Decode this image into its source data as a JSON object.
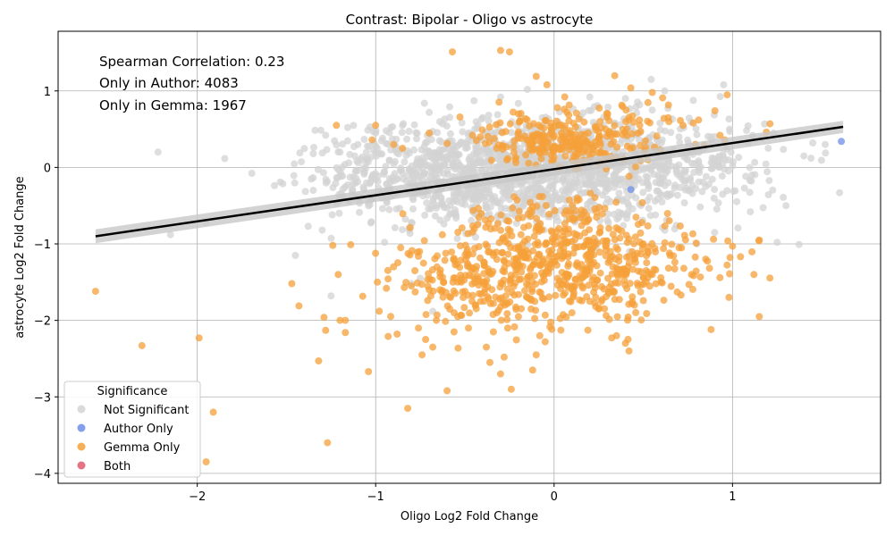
{
  "chart_data": {
    "type": "scatter",
    "title": "Contrast: Bipolar - Oligo vs astrocyte",
    "xlabel": "Oligo Log2 Fold Change",
    "ylabel": "astrocyte Log2 Fold Change",
    "xlim": [
      -2.78,
      1.83
    ],
    "ylim": [
      -4.13,
      1.78
    ],
    "x_ticks": [
      -2,
      -1,
      0,
      1
    ],
    "x_tick_labels": [
      "−2",
      "−1",
      "0",
      "1"
    ],
    "y_ticks": [
      -4,
      -3,
      -2,
      -1,
      0,
      1
    ],
    "y_tick_labels": [
      "−4",
      "−3",
      "−2",
      "−1",
      "0",
      "1"
    ],
    "grid": true,
    "annotations": [
      "Spearman Correlation: 0.23",
      "Only in Author: 4083",
      "Only in Gemma: 1967"
    ],
    "regression_line": {
      "color": "#000000",
      "band_color": "#c8c8c8",
      "start": [
        -2.57,
        -0.9
      ],
      "end": [
        1.62,
        0.53
      ],
      "ci_halfwidth": [
        0.09,
        0.08
      ]
    },
    "legend": {
      "title": "Significance",
      "placement": "lower-left",
      "entries": [
        {
          "label": "Not Significant",
          "color": "#d3d3d3"
        },
        {
          "label": "Author Only",
          "color": "#6f8ee8"
        },
        {
          "label": "Gemma Only",
          "color": "#f5a03a"
        },
        {
          "label": "Both",
          "color": "#e05a6f"
        }
      ]
    },
    "series": [
      {
        "name": "Not Significant",
        "color": "#d3d3d3",
        "points": [
          [
            -2.22,
            0.2
          ],
          [
            -2.15,
            -0.88
          ],
          [
            -1.95,
            -0.72
          ],
          [
            -1.45,
            -1.15
          ],
          [
            -1.35,
            -0.3
          ],
          [
            -1.35,
            0.18
          ],
          [
            -1.3,
            -0.82
          ],
          [
            -1.28,
            0.42
          ],
          [
            -1.25,
            -1.68
          ],
          [
            -1.2,
            0.2
          ],
          [
            -1.15,
            -0.44
          ],
          [
            -1.1,
            0.3
          ],
          [
            -1.0,
            0.45
          ],
          [
            -0.95,
            -0.98
          ],
          [
            -0.85,
            0.55
          ],
          [
            -0.8,
            -0.72
          ],
          [
            -0.75,
            -1.45
          ],
          [
            -0.7,
            0.72
          ],
          [
            -0.68,
            -1.88
          ],
          [
            -0.4,
            0.65
          ],
          [
            -0.3,
            0.92
          ],
          [
            -0.15,
            1.02
          ],
          [
            0.2,
            0.92
          ],
          [
            0.4,
            0.9
          ],
          [
            0.55,
            0.75
          ],
          [
            0.62,
            1.0
          ],
          [
            0.8,
            -1.0
          ],
          [
            0.9,
            -0.85
          ],
          [
            0.95,
            1.08
          ],
          [
            1.0,
            0.02
          ],
          [
            1.1,
            -0.58
          ],
          [
            1.2,
            0.25
          ],
          [
            1.25,
            -0.98
          ],
          [
            1.3,
            -0.5
          ],
          [
            1.4,
            0.15
          ],
          [
            1.45,
            0.32
          ],
          [
            1.52,
            0.3
          ],
          [
            1.6,
            -0.33
          ],
          [
            0.85,
            -0.25
          ],
          [
            0.7,
            0.4
          ]
        ],
        "clouds": [
          {
            "cx": -0.15,
            "cy": -0.05,
            "sx": 0.42,
            "sy": 0.35,
            "n": 900
          },
          {
            "cx": -0.6,
            "cy": -0.15,
            "sx": 0.35,
            "sy": 0.3,
            "n": 250
          },
          {
            "cx": 0.4,
            "cy": 0.05,
            "sx": 0.35,
            "sy": 0.32,
            "n": 250
          },
          {
            "cx": 0.75,
            "cy": 0.0,
            "sx": 0.3,
            "sy": 0.35,
            "n": 120
          },
          {
            "cx": -0.9,
            "cy": 0.0,
            "sx": 0.3,
            "sy": 0.35,
            "n": 120
          }
        ]
      },
      {
        "name": "Author Only",
        "color": "#6f8ee8",
        "points": [
          [
            1.61,
            0.34
          ],
          [
            0.43,
            -0.29
          ]
        ]
      },
      {
        "name": "Gemma Only",
        "color": "#f5a03a",
        "points": [
          [
            -2.57,
            -1.62
          ],
          [
            -2.31,
            -2.33
          ],
          [
            -1.99,
            -2.23
          ],
          [
            -1.95,
            -3.85
          ],
          [
            -1.91,
            -3.2
          ],
          [
            -1.47,
            -1.52
          ],
          [
            -1.43,
            -1.81
          ],
          [
            -1.32,
            -2.53
          ],
          [
            -1.29,
            -1.96
          ],
          [
            -1.28,
            -2.13
          ],
          [
            -1.27,
            -3.6
          ],
          [
            -1.24,
            -1.02
          ],
          [
            -1.22,
            0.55
          ],
          [
            -1.21,
            -1.4
          ],
          [
            -1.2,
            -2.0
          ],
          [
            -1.17,
            -2.0
          ],
          [
            -1.17,
            -2.16
          ],
          [
            -1.14,
            -1.01
          ],
          [
            -1.04,
            -2.67
          ],
          [
            -1.02,
            0.36
          ],
          [
            -1.0,
            0.55
          ],
          [
            -0.99,
            -1.5
          ],
          [
            -0.98,
            -1.88
          ],
          [
            -0.94,
            -1.58
          ],
          [
            -0.93,
            -2.21
          ],
          [
            -0.9,
            -1.3
          ],
          [
            -0.88,
            -2.18
          ],
          [
            -0.86,
            -1.05
          ],
          [
            -0.84,
            -1.57
          ],
          [
            -0.82,
            -3.15
          ],
          [
            -0.8,
            -1.55
          ],
          [
            -0.78,
            -1.35
          ],
          [
            -0.76,
            -2.1
          ],
          [
            -0.74,
            -2.45
          ],
          [
            -0.72,
            -2.25
          ],
          [
            -0.7,
            -1.6
          ],
          [
            -0.68,
            -2.35
          ],
          [
            -0.66,
            -2.0
          ],
          [
            -0.64,
            -1.6
          ],
          [
            -0.62,
            -1.5
          ],
          [
            -0.6,
            -2.92
          ],
          [
            -0.58,
            -1.7
          ],
          [
            -0.56,
            -1.9
          ],
          [
            -0.54,
            -1.95
          ],
          [
            -0.52,
            -1.5
          ],
          [
            -0.5,
            -1.62
          ],
          [
            -0.48,
            -2.1
          ],
          [
            -0.46,
            -1.75
          ],
          [
            -0.44,
            -1.8
          ],
          [
            -0.42,
            -1.65
          ],
          [
            -0.4,
            -1.5
          ],
          [
            -0.38,
            -2.35
          ],
          [
            -0.36,
            -2.55
          ],
          [
            -0.34,
            -2.15
          ],
          [
            -0.32,
            -1.9
          ],
          [
            -0.3,
            -2.7
          ],
          [
            -0.28,
            -2.48
          ],
          [
            -0.26,
            -2.1
          ],
          [
            -0.24,
            -2.9
          ],
          [
            -0.2,
            -1.95
          ],
          [
            -0.15,
            -1.7
          ],
          [
            -0.12,
            -2.65
          ],
          [
            -0.1,
            -2.45
          ],
          [
            -0.08,
            -2.2
          ],
          [
            -0.05,
            -2.28
          ],
          [
            0.1,
            -1.9
          ],
          [
            0.2,
            -1.75
          ],
          [
            0.25,
            -1.85
          ],
          [
            0.35,
            -2.2
          ],
          [
            0.4,
            -2.3
          ],
          [
            0.42,
            -2.4
          ],
          [
            0.45,
            -1.8
          ],
          [
            0.5,
            -1.0
          ],
          [
            0.55,
            -1.4
          ],
          [
            0.6,
            -1.5
          ],
          [
            0.65,
            -1.15
          ],
          [
            0.7,
            -1.05
          ],
          [
            0.77,
            -1.4
          ],
          [
            0.85,
            -1.2
          ],
          [
            0.88,
            -2.12
          ],
          [
            0.98,
            -1.7
          ],
          [
            1.0,
            -1.03
          ],
          [
            1.12,
            -1.4
          ],
          [
            1.15,
            -1.95
          ],
          [
            1.15,
            -0.95
          ],
          [
            -0.3,
            1.53
          ],
          [
            -0.25,
            1.51
          ],
          [
            -0.57,
            1.51
          ],
          [
            -0.1,
            1.19
          ],
          [
            0.34,
            1.2
          ],
          [
            -0.04,
            1.08
          ],
          [
            0.43,
            1.04
          ],
          [
            0.55,
            0.98
          ],
          [
            0.97,
            0.95
          ],
          [
            0.81,
            0.62
          ],
          [
            1.21,
            0.57
          ],
          [
            1.19,
            0.46
          ],
          [
            0.78,
            0.58
          ],
          [
            0.64,
            0.65
          ],
          [
            -0.9,
            0.3
          ],
          [
            -0.85,
            0.25
          ],
          [
            -0.7,
            0.45
          ],
          [
            -0.2,
            0.7
          ],
          [
            0.3,
            0.7
          ],
          [
            0.48,
            0.55
          ]
        ],
        "clouds": [
          {
            "cx": 0.0,
            "cy": 0.35,
            "sx": 0.2,
            "sy": 0.15,
            "n": 200
          },
          {
            "cx": 0.0,
            "cy": -1.25,
            "sx": 0.4,
            "sy": 0.25,
            "n": 350
          },
          {
            "cx": 0.05,
            "cy": -0.7,
            "sx": 0.28,
            "sy": 0.2,
            "n": 120
          },
          {
            "cx": -0.35,
            "cy": -1.6,
            "sx": 0.3,
            "sy": 0.3,
            "n": 120
          },
          {
            "cx": 0.3,
            "cy": -1.5,
            "sx": 0.3,
            "sy": 0.3,
            "n": 120
          },
          {
            "cx": 0.3,
            "cy": 0.5,
            "sx": 0.3,
            "sy": 0.2,
            "n": 80
          }
        ]
      },
      {
        "name": "Both",
        "color": "#e05a6f",
        "points": []
      }
    ]
  }
}
